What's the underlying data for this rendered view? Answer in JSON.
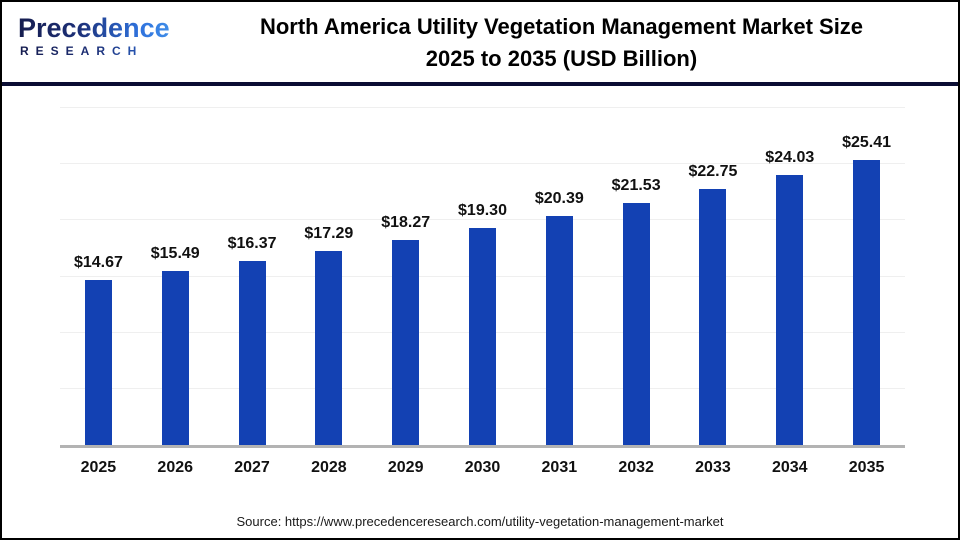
{
  "header": {
    "logo": {
      "name": "Precedence",
      "sub": "RESEARCH"
    },
    "title_line1": "North America Utility Vegetation Management Market Size",
    "title_line2": "2025 to 2035 (USD Billion)"
  },
  "footer": {
    "source": "Source: https://www.precedenceresearch.com/utility-vegetation-management-market"
  },
  "colors": {
    "bar": "#1341b3",
    "divider": "#0a0d33",
    "axis": "#b3b3b3",
    "gridline": "#efefef"
  },
  "chart_data": {
    "type": "bar",
    "title": "North America Utility Vegetation Management Market Size 2025 to 2035 (USD Billion)",
    "unit": "USD Billion",
    "categories": [
      "2025",
      "2026",
      "2027",
      "2028",
      "2029",
      "2030",
      "2031",
      "2032",
      "2033",
      "2034",
      "2035"
    ],
    "values": [
      14.67,
      15.49,
      16.37,
      17.29,
      18.27,
      19.3,
      20.39,
      21.53,
      22.75,
      24.03,
      25.41
    ],
    "value_labels": [
      "$14.67",
      "$15.49",
      "$16.37",
      "$17.29",
      "$18.27",
      "$19.30",
      "$20.39",
      "$21.53",
      "$22.75",
      "$24.03",
      "$25.41"
    ],
    "xlabel": "",
    "ylabel": "",
    "ylim": [
      0,
      30
    ],
    "grid_step": 5,
    "grid": true,
    "legend": false,
    "bar_color": "#1341b3"
  }
}
